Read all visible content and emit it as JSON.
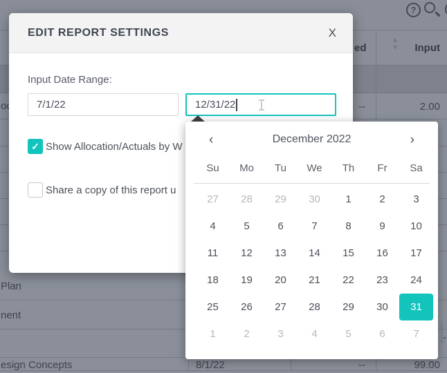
{
  "modal": {
    "title": "EDIT REPORT SETTINGS",
    "close_label": "X",
    "date_range_label": "Input Date Range:",
    "start_date": "7/1/22",
    "end_date": "12/31/22",
    "checkbox_show": {
      "label": "Show Allocation/Actuals by W",
      "checked": true,
      "check_glyph": "✓"
    },
    "checkbox_share": {
      "label": "Share a copy of this report u",
      "checked": false
    }
  },
  "calendar": {
    "month_title": "December 2022",
    "prev_glyph": "‹",
    "next_glyph": "›",
    "day_headers": [
      "Su",
      "Mo",
      "Tu",
      "We",
      "Th",
      "Fr",
      "Sa"
    ],
    "days": [
      {
        "n": "27",
        "s": "m"
      },
      {
        "n": "28",
        "s": "m"
      },
      {
        "n": "29",
        "s": "m"
      },
      {
        "n": "30",
        "s": "m"
      },
      {
        "n": "1"
      },
      {
        "n": "2"
      },
      {
        "n": "3"
      },
      {
        "n": "4"
      },
      {
        "n": "5"
      },
      {
        "n": "6"
      },
      {
        "n": "7"
      },
      {
        "n": "8"
      },
      {
        "n": "9"
      },
      {
        "n": "10"
      },
      {
        "n": "11"
      },
      {
        "n": "12"
      },
      {
        "n": "13"
      },
      {
        "n": "14"
      },
      {
        "n": "15"
      },
      {
        "n": "16"
      },
      {
        "n": "17"
      },
      {
        "n": "18"
      },
      {
        "n": "19"
      },
      {
        "n": "20"
      },
      {
        "n": "21"
      },
      {
        "n": "22"
      },
      {
        "n": "23"
      },
      {
        "n": "24"
      },
      {
        "n": "25"
      },
      {
        "n": "26"
      },
      {
        "n": "27"
      },
      {
        "n": "28"
      },
      {
        "n": "29"
      },
      {
        "n": "30"
      },
      {
        "n": "31",
        "s": "sel"
      },
      {
        "n": "1",
        "s": "m"
      },
      {
        "n": "2",
        "s": "m"
      },
      {
        "n": "3",
        "s": "m"
      },
      {
        "n": "4",
        "s": "m"
      },
      {
        "n": "5",
        "s": "m"
      },
      {
        "n": "6",
        "s": "m"
      },
      {
        "n": "7",
        "s": "m"
      }
    ],
    "selected_day": "31"
  },
  "background": {
    "toolbar": {
      "help_glyph": "?"
    },
    "table": {
      "header_partial_label": "ed",
      "input_header": "Input",
      "sort_up": "˄",
      "sort_down": "˅",
      "row_top": {
        "name_fragment": "oc",
        "planned": "--",
        "input": "2.00"
      },
      "row_plan_fragment": "Plan",
      "row_nent_fragment": "nent",
      "row_bottom": {
        "name_fragment": "esign Concepts",
        "date": "8/1/22",
        "planned": "--",
        "input": "99.00"
      },
      "right_edge_fragment": "-"
    }
  },
  "colors": {
    "accent_teal": "#12c4bc",
    "overlay_gray": "#898e98",
    "modal_header_bg": "#f3f3f4",
    "selected_day_bg": "#12c4bc",
    "focused_input_border": "#12c4bc"
  }
}
